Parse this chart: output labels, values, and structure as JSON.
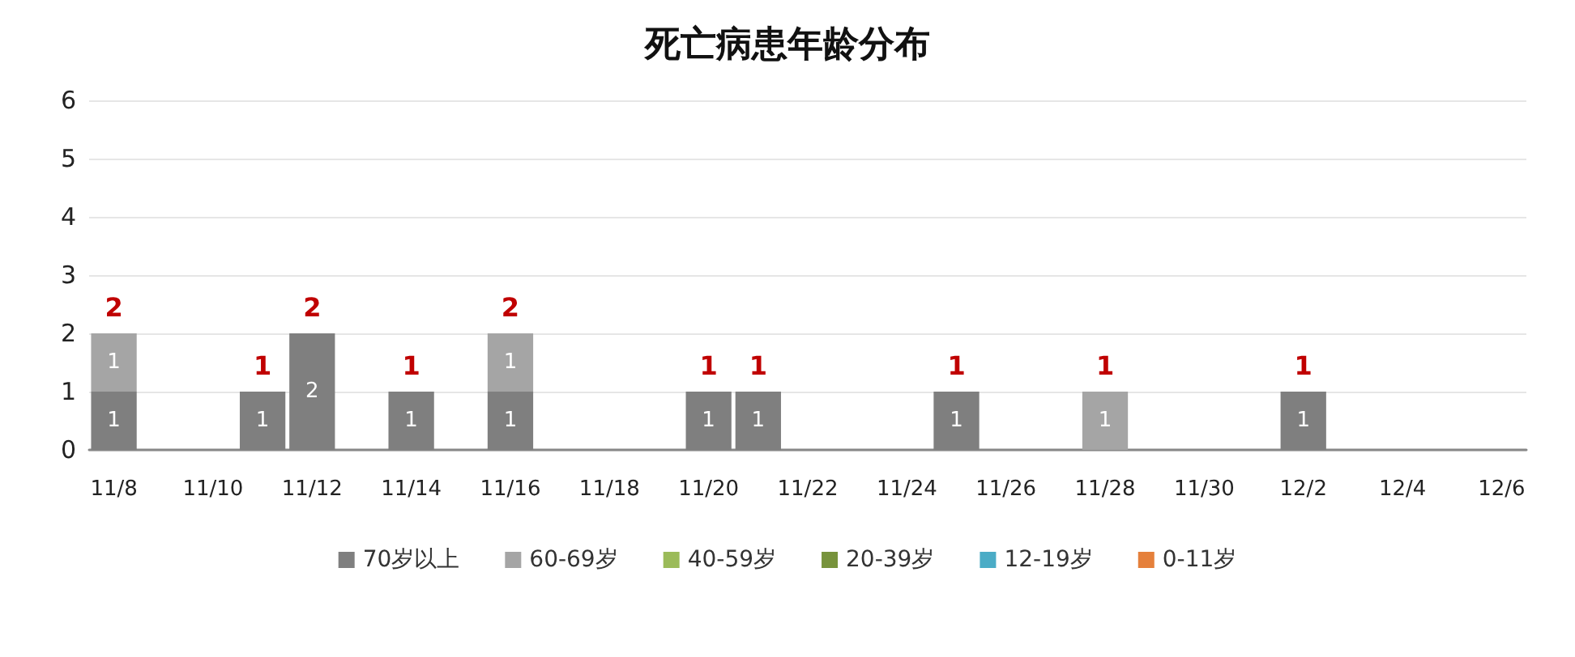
{
  "chart_data": {
    "type": "bar",
    "title": "死亡病患年龄分布",
    "stacked": true,
    "categories": [
      "11/8",
      null,
      "11/10",
      null,
      "11/12",
      null,
      "11/14",
      null,
      "11/16",
      null,
      "11/18",
      null,
      "11/20",
      null,
      "11/22",
      null,
      "11/24",
      null,
      "11/26",
      null,
      "11/28",
      null,
      "11/30",
      null,
      "12/2",
      null,
      "12/4",
      null,
      "12/6"
    ],
    "series": [
      {
        "name": "70岁以上",
        "color": "#7f7f7f",
        "values": [
          1,
          null,
          null,
          1,
          2,
          null,
          1,
          null,
          1,
          null,
          null,
          null,
          1,
          1,
          null,
          null,
          null,
          1,
          null,
          null,
          null,
          null,
          null,
          null,
          1,
          null,
          null,
          null,
          null
        ]
      },
      {
        "name": "60-69岁",
        "color": "#a5a5a5",
        "values": [
          1,
          null,
          null,
          null,
          null,
          null,
          null,
          null,
          1,
          null,
          null,
          null,
          null,
          null,
          null,
          null,
          null,
          null,
          null,
          null,
          1,
          null,
          null,
          null,
          null,
          null,
          null,
          null,
          null
        ]
      },
      {
        "name": "40-59岁",
        "color": "#9bbb59",
        "values": [
          null,
          null,
          null,
          null,
          null,
          null,
          null,
          null,
          null,
          null,
          null,
          null,
          null,
          null,
          null,
          null,
          null,
          null,
          null,
          null,
          null,
          null,
          null,
          null,
          null,
          null,
          null,
          null,
          null
        ]
      },
      {
        "name": "20-39岁",
        "color": "#77933c",
        "values": [
          null,
          null,
          null,
          null,
          null,
          null,
          null,
          null,
          null,
          null,
          null,
          null,
          null,
          null,
          null,
          null,
          null,
          null,
          null,
          null,
          null,
          null,
          null,
          null,
          null,
          null,
          null,
          null,
          null
        ]
      },
      {
        "name": "12-19岁",
        "color": "#4bacc6",
        "values": [
          null,
          null,
          null,
          null,
          null,
          null,
          null,
          null,
          null,
          null,
          null,
          null,
          null,
          null,
          null,
          null,
          null,
          null,
          null,
          null,
          null,
          null,
          null,
          null,
          null,
          null,
          null,
          null,
          null
        ]
      },
      {
        "name": "0-11岁",
        "color": "#e5803b",
        "values": [
          null,
          null,
          null,
          null,
          null,
          null,
          null,
          null,
          null,
          null,
          null,
          null,
          null,
          null,
          null,
          null,
          null,
          null,
          null,
          null,
          null,
          null,
          null,
          null,
          null,
          null,
          null,
          null,
          null
        ]
      }
    ],
    "totals": [
      "2",
      null,
      null,
      "1",
      "2",
      null,
      "1",
      null,
      "2",
      null,
      null,
      null,
      "1",
      "1",
      null,
      null,
      null,
      "1",
      null,
      null,
      "1",
      null,
      null,
      null,
      "1",
      null,
      null,
      null,
      null
    ],
    "data_labels": true,
    "ylim": [
      0,
      6
    ],
    "yticks": [
      0,
      1,
      2,
      3,
      4,
      5,
      6
    ],
    "grid": "y",
    "legend": "bottom"
  }
}
